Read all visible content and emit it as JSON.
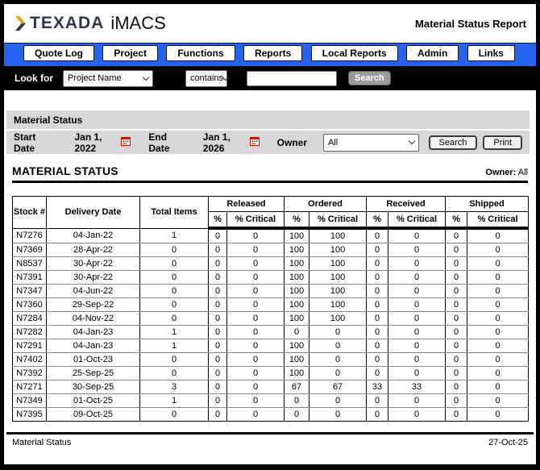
{
  "header": {
    "brand": "TEXADA",
    "product": "iMACS",
    "report_title": "Material Status Report"
  },
  "nav": {
    "items": [
      "Quote Log",
      "Project",
      "Functions",
      "Reports",
      "Local Reports",
      "Admin",
      "Links"
    ]
  },
  "lookup": {
    "label": "Look for",
    "field_selected": "Project Name",
    "operator_selected": "contains",
    "query_value": "",
    "search_label": "Search"
  },
  "filters": {
    "panel_title": "Material Status",
    "start_date_label": "Start Date",
    "start_date": "Jan 1, 2022",
    "end_date_label": "End Date",
    "end_date": "Jan 1, 2026",
    "owner_label": "Owner",
    "owner_selected": "All",
    "search_label": "Search",
    "print_label": "Print"
  },
  "report": {
    "heading": "MATERIAL STATUS",
    "owner_label": "Owner:",
    "owner_value": "All"
  },
  "table": {
    "fixed_columns": [
      "Stock #",
      "Delivery Date",
      "Total Items"
    ],
    "groups": [
      "Released",
      "Ordered",
      "Received",
      "Shipped"
    ],
    "sub_columns": [
      "%",
      "% Critical"
    ],
    "rows": [
      [
        "N7276",
        "04-Jan-22",
        "1",
        "0",
        "0",
        "100",
        "100",
        "0",
        "0",
        "0",
        "0"
      ],
      [
        "N7369",
        "28-Apr-22",
        "0",
        "0",
        "0",
        "100",
        "100",
        "0",
        "0",
        "0",
        "0"
      ],
      [
        "N8537",
        "30-Apr-22",
        "0",
        "0",
        "0",
        "100",
        "100",
        "0",
        "0",
        "0",
        "0"
      ],
      [
        "N7391",
        "30-Apr-22",
        "0",
        "0",
        "0",
        "100",
        "100",
        "0",
        "0",
        "0",
        "0"
      ],
      [
        "N7347",
        "04-Jun-22",
        "0",
        "0",
        "0",
        "100",
        "100",
        "0",
        "0",
        "0",
        "0"
      ],
      [
        "N7360",
        "29-Sep-22",
        "0",
        "0",
        "0",
        "100",
        "100",
        "0",
        "0",
        "0",
        "0"
      ],
      [
        "N7284",
        "04-Nov-22",
        "0",
        "0",
        "0",
        "100",
        "100",
        "0",
        "0",
        "0",
        "0"
      ],
      [
        "N7282",
        "04-Jan-23",
        "1",
        "0",
        "0",
        "0",
        "0",
        "0",
        "0",
        "0",
        "0"
      ],
      [
        "N7291",
        "04-Jan-23",
        "1",
        "0",
        "0",
        "100",
        "0",
        "0",
        "0",
        "0",
        "0"
      ],
      [
        "N7402",
        "01-Oct-23",
        "0",
        "0",
        "0",
        "100",
        "0",
        "0",
        "0",
        "0",
        "0"
      ],
      [
        "N7392",
        "25-Sep-25",
        "0",
        "0",
        "0",
        "100",
        "0",
        "0",
        "0",
        "0",
        "0"
      ],
      [
        "N7271",
        "30-Sep-25",
        "3",
        "0",
        "0",
        "67",
        "67",
        "33",
        "33",
        "0",
        "0"
      ],
      [
        "N7349",
        "01-Oct-25",
        "1",
        "0",
        "0",
        "0",
        "0",
        "0",
        "0",
        "0",
        "0"
      ],
      [
        "N7395",
        "09-Oct-25",
        "0",
        "0",
        "0",
        "0",
        "0",
        "0",
        "0",
        "0",
        "0"
      ]
    ]
  },
  "footer": {
    "left": "Material Status",
    "date": "27-Oct-25"
  },
  "colors": {
    "nav_blue": "#2365f2",
    "brand_navy": "#2f3847",
    "brand_gold": "#f0a31f",
    "panel_gray": "#d7d7d7",
    "calendar_red": "#cc1100"
  }
}
